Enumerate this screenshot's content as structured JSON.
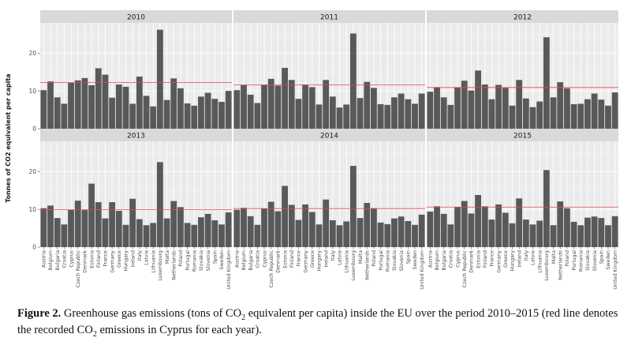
{
  "chart_data": {
    "type": "bar",
    "ylabel": "Tonnes of CO2 equivalent per capita",
    "xlabel": "",
    "ylim": [
      0,
      28
    ],
    "yticks": [
      0,
      10,
      20
    ],
    "grid": true,
    "legend": "none",
    "bar_color": "#595959",
    "reference_line_color": "#e8484d",
    "reference_line_label": "Cyprus",
    "categories": [
      "Austria",
      "Belgium",
      "Bulgaria",
      "Croatia",
      "Cyprus",
      "Czech Republic",
      "Denmark",
      "Estonia",
      "Finland",
      "France",
      "Germany",
      "Greece",
      "Hungary",
      "Ireland",
      "Italy",
      "Latvia",
      "Lithuania",
      "Luxembourg",
      "Malta",
      "Netherlands",
      "Poland",
      "Portugal",
      "Romania",
      "Slovakia",
      "Slovenia",
      "Spain",
      "Sweden",
      "United Kingdom"
    ],
    "panels": [
      {
        "title": "2010",
        "reference": 12.2,
        "values": [
          10.2,
          12.5,
          8.3,
          6.6,
          12.2,
          12.8,
          13.4,
          11.5,
          16.0,
          14.3,
          8.2,
          11.7,
          11.1,
          6.6,
          13.8,
          8.7,
          5.9,
          26.2,
          7.6,
          13.3,
          10.7,
          6.7,
          6.1,
          8.5,
          9.5,
          7.9,
          7.1,
          10.0
        ]
      },
      {
        "title": "2011",
        "reference": 11.6,
        "values": [
          10.2,
          11.5,
          9.0,
          6.8,
          11.6,
          13.2,
          11.4,
          16.1,
          12.9,
          7.9,
          11.7,
          11.0,
          6.4,
          12.9,
          8.5,
          5.6,
          6.4,
          25.2,
          8.1,
          12.4,
          10.8,
          6.5,
          6.3,
          8.3,
          9.3,
          7.8,
          6.6,
          9.3
        ]
      },
      {
        "title": "2012",
        "reference": 10.9,
        "values": [
          9.8,
          11.0,
          8.3,
          6.3,
          10.9,
          12.7,
          10.1,
          15.4,
          11.7,
          7.8,
          11.6,
          10.8,
          6.1,
          12.9,
          8.0,
          5.7,
          7.2,
          24.2,
          8.3,
          12.3,
          10.7,
          6.5,
          6.6,
          7.8,
          9.3,
          7.7,
          6.1,
          9.6
        ]
      },
      {
        "title": "2013",
        "reference": 9.9,
        "values": [
          10.3,
          11.0,
          7.7,
          6.0,
          9.9,
          12.3,
          9.8,
          16.8,
          11.9,
          7.6,
          11.9,
          9.6,
          5.9,
          12.8,
          7.4,
          5.8,
          6.4,
          22.5,
          7.6,
          12.2,
          10.6,
          6.4,
          5.9,
          7.9,
          8.8,
          7.1,
          6.0,
          9.2
        ]
      },
      {
        "title": "2014",
        "reference": 10.2,
        "values": [
          9.9,
          10.4,
          8.2,
          5.9,
          10.2,
          12.0,
          9.5,
          16.2,
          11.2,
          7.2,
          11.3,
          9.3,
          6.0,
          12.6,
          7.1,
          5.8,
          6.8,
          21.5,
          7.7,
          11.7,
          10.3,
          6.5,
          6.1,
          7.6,
          8.1,
          6.9,
          5.9,
          8.6
        ]
      },
      {
        "title": "2015",
        "reference": 10.6,
        "values": [
          9.4,
          10.8,
          8.8,
          6.0,
          10.6,
          12.2,
          8.9,
          13.8,
          10.8,
          7.3,
          11.3,
          9.1,
          6.3,
          12.9,
          7.3,
          6.0,
          7.0,
          20.4,
          5.8,
          12.1,
          10.3,
          6.7,
          5.8,
          7.8,
          8.1,
          7.7,
          5.8,
          8.2
        ]
      }
    ]
  },
  "caption": {
    "label": "Figure 2.",
    "text_part1": " Greenhouse gas emissions (tons of CO",
    "text_part2": " equivalent per capita) inside the EU over the period 2010–2015 (red line denotes the recorded CO",
    "text_part3": " emissions in Cyprus for each year).",
    "subscript": "2"
  }
}
